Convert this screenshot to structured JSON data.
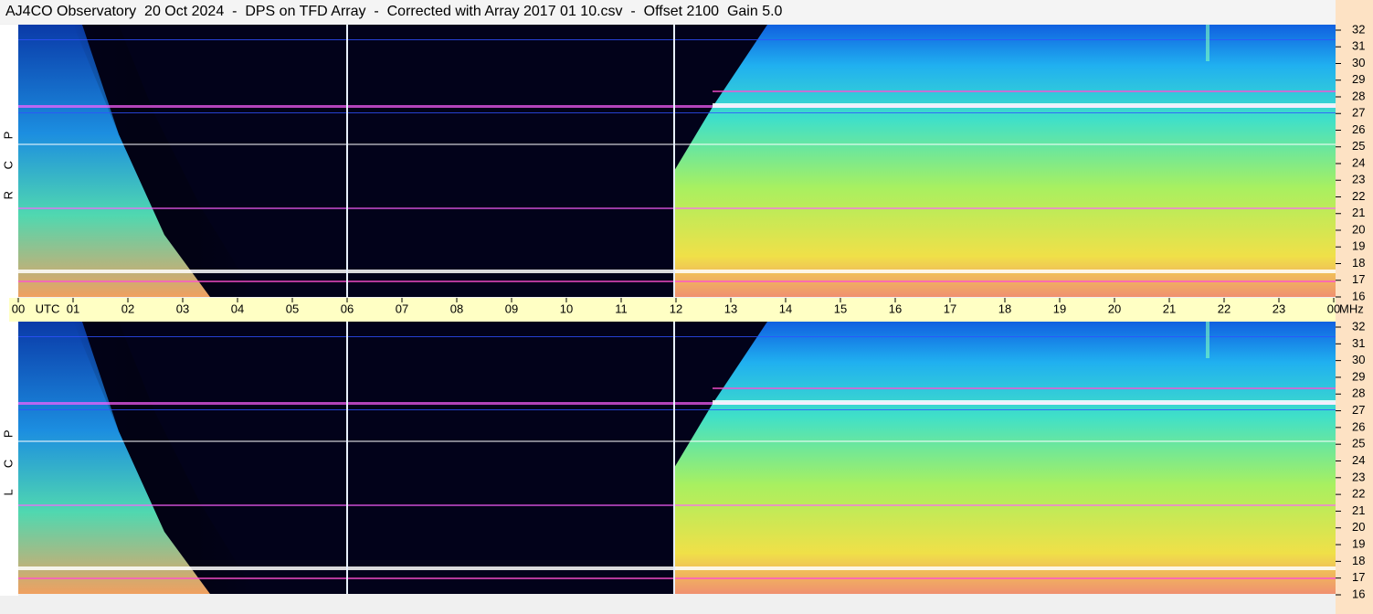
{
  "title": "AJ4CO Observatory  20 Oct 2024  -  DPS on TFD Array  -  Corrected with Array 2017 01 10.csv  -  Offset 2100  Gain 5.0",
  "x_axis": {
    "xlim": [
      0,
      24
    ],
    "label": "UTC",
    "unit": "MHz",
    "xticks": [
      {
        "value": 0,
        "label": "00"
      },
      {
        "value": 1,
        "label": "01"
      },
      {
        "value": 2,
        "label": "02"
      },
      {
        "value": 3,
        "label": "03"
      },
      {
        "value": 4,
        "label": "04"
      },
      {
        "value": 5,
        "label": "05"
      },
      {
        "value": 6,
        "label": "06"
      },
      {
        "value": 7,
        "label": "07"
      },
      {
        "value": 8,
        "label": "08"
      },
      {
        "value": 9,
        "label": "09"
      },
      10,
      11,
      12,
      13,
      14,
      15,
      16,
      17,
      18,
      19,
      20,
      21,
      22,
      23,
      {
        "value": 24,
        "label": "00"
      }
    ]
  },
  "chart_data": [
    {
      "type": "spectrogram",
      "ylabel": "R C P",
      "ylim": [
        16,
        32
      ],
      "yticks": [
        16,
        17,
        18,
        19,
        20,
        21,
        22,
        23,
        24,
        25,
        26,
        27,
        28,
        29,
        30,
        31,
        32
      ]
    },
    {
      "type": "spectrogram",
      "ylabel": "L C P",
      "ylim": [
        16,
        32
      ],
      "yticks": [
        16,
        17,
        18,
        19,
        20,
        21,
        22,
        23,
        24,
        25,
        26,
        27,
        28,
        29,
        30,
        31,
        32
      ]
    }
  ]
}
